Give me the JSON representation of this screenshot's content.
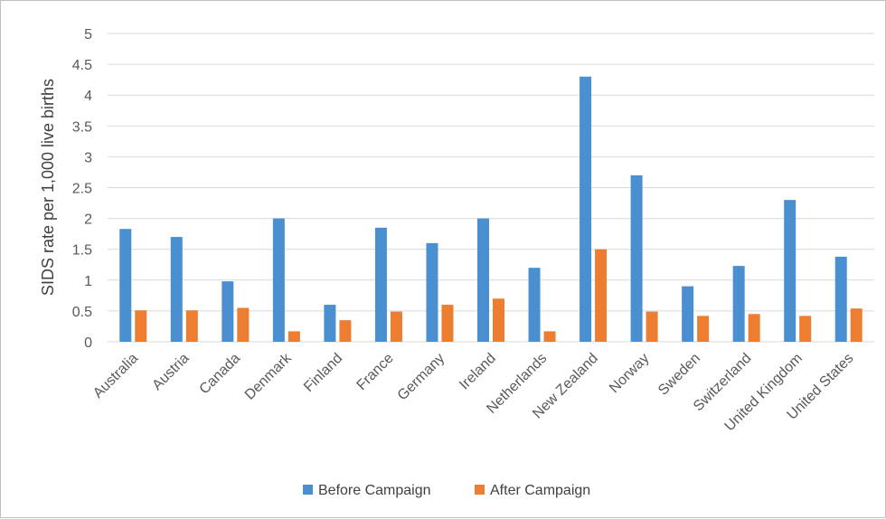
{
  "chart_data": {
    "type": "bar",
    "categories": [
      "Australia",
      "Austria",
      "Canada",
      "Denmark",
      "Finland",
      "France",
      "Germany",
      "Ireland",
      "Netherlands",
      "New Zealand",
      "Norway",
      "Sweden",
      "Switzerland",
      "United Kingdom",
      "United States"
    ],
    "series": [
      {
        "name": "Before Campaign",
        "color": "#4a90d0",
        "values": [
          1.83,
          1.7,
          0.98,
          2.0,
          0.6,
          1.85,
          1.6,
          2.0,
          1.2,
          4.3,
          2.7,
          0.9,
          1.23,
          2.3,
          1.38
        ]
      },
      {
        "name": "After Campaign",
        "color": "#ed7d31",
        "values": [
          0.51,
          0.51,
          0.55,
          0.17,
          0.35,
          0.49,
          0.6,
          0.7,
          0.17,
          1.5,
          0.49,
          0.42,
          0.45,
          0.42,
          0.54
        ]
      }
    ],
    "title": "",
    "xlabel": "",
    "ylabel": "SIDS rate per 1,000 live births",
    "ylim": [
      0,
      5
    ],
    "yticks": [
      "0",
      "0.5",
      "1",
      "1.5",
      "2",
      "2.5",
      "3",
      "3.5",
      "4",
      "4.5",
      "5"
    ],
    "grid": true,
    "legend": "bottom-center"
  }
}
